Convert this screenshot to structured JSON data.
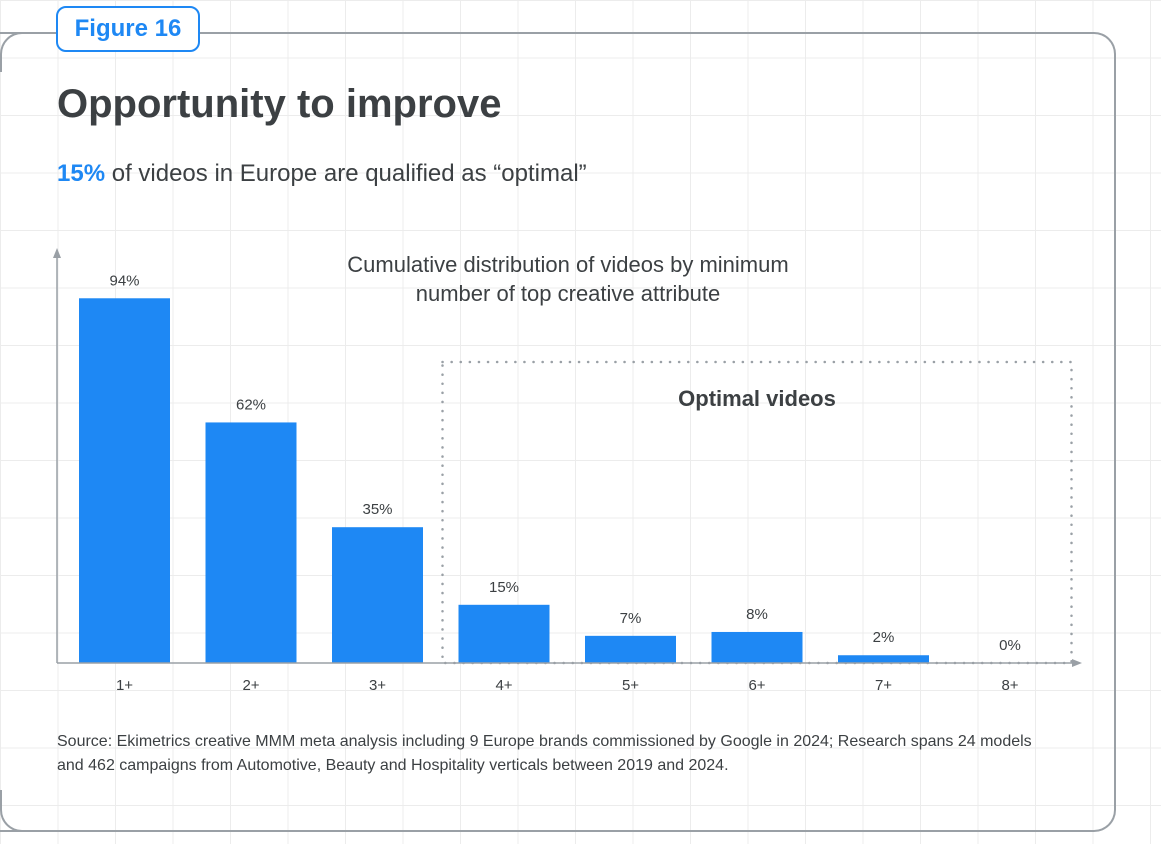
{
  "figure_label": "Figure 16",
  "title": "Opportunity to improve",
  "subtitle": {
    "highlight": "15%",
    "text": " of videos in Europe are qualified as “optimal”"
  },
  "chart_data": {
    "type": "bar",
    "title_lines": [
      "Cumulative distribution of videos by minimum",
      "number of top creative attribute"
    ],
    "categories": [
      "1+",
      "2+",
      "3+",
      "4+",
      "5+",
      "6+",
      "7+",
      "8+"
    ],
    "values": [
      94,
      62,
      35,
      15,
      7,
      8,
      2,
      0
    ],
    "value_labels": [
      "94%",
      "62%",
      "35%",
      "15%",
      "7%",
      "8%",
      "2%",
      "0%"
    ],
    "ylim": [
      0,
      100
    ],
    "xlabel": "",
    "ylabel": "",
    "bar_color": "#1e88f4",
    "annotation": {
      "label": "Optimal videos",
      "category_range": [
        "4+",
        "8+"
      ]
    }
  },
  "source": "Source: Ekimetrics creative MMM meta analysis including 9 Europe brands commissioned by Google in 2024; Research spans 24 models and 462 campaigns from Automotive, Beauty and Hospitality verticals between 2019 and 2024."
}
